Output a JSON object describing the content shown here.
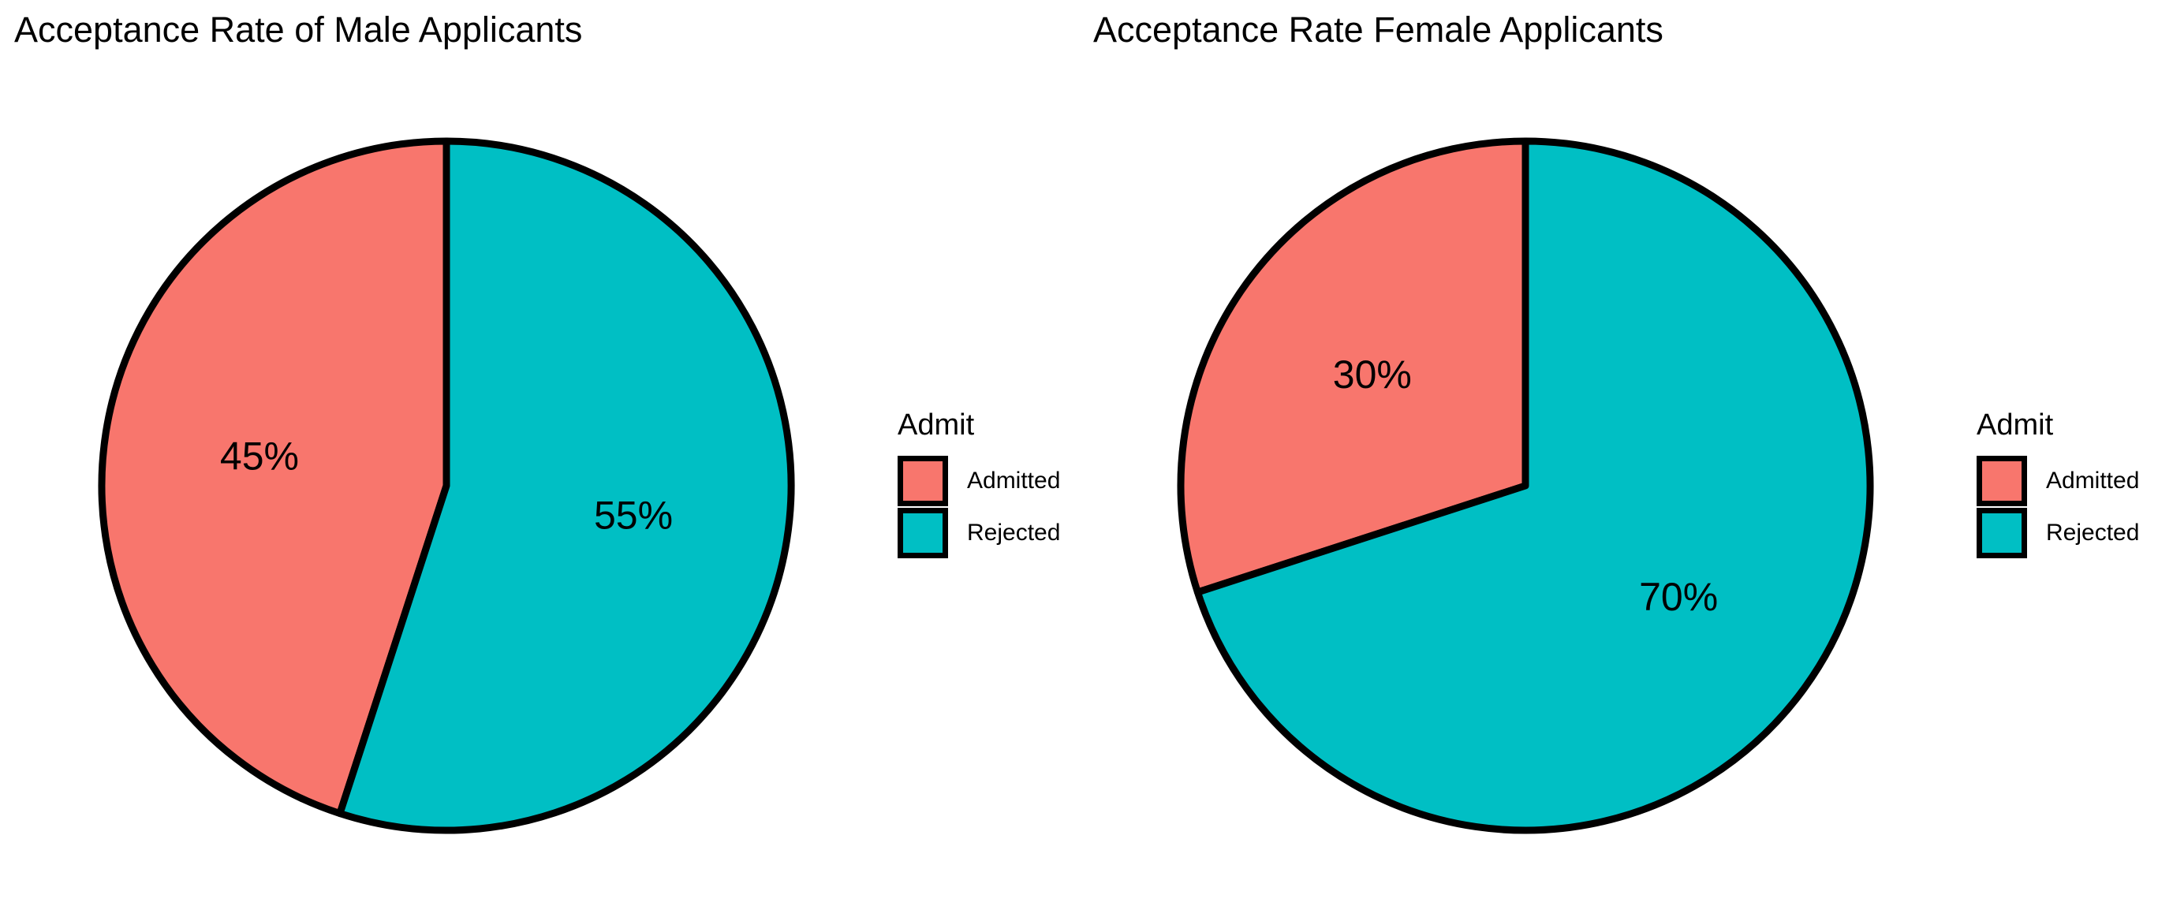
{
  "colors": {
    "admitted": "#F8766D",
    "rejected": "#00BFC4",
    "outline": "#000000"
  },
  "chart_data": [
    {
      "type": "pie",
      "title": "Acceptance Rate of Male Applicants",
      "legend": {
        "title": "Admit",
        "placement": "right"
      },
      "slices": [
        {
          "label": "Admitted",
          "value": 45,
          "display": "45%",
          "color": "#F8766D"
        },
        {
          "label": "Rejected",
          "value": 55,
          "display": "55%",
          "color": "#00BFC4"
        }
      ]
    },
    {
      "type": "pie",
      "title": "Acceptance Rate Female Applicants",
      "legend": {
        "title": "Admit",
        "placement": "right"
      },
      "slices": [
        {
          "label": "Admitted",
          "value": 30,
          "display": "30%",
          "color": "#F8766D"
        },
        {
          "label": "Rejected",
          "value": 70,
          "display": "70%",
          "color": "#00BFC4"
        }
      ]
    }
  ]
}
